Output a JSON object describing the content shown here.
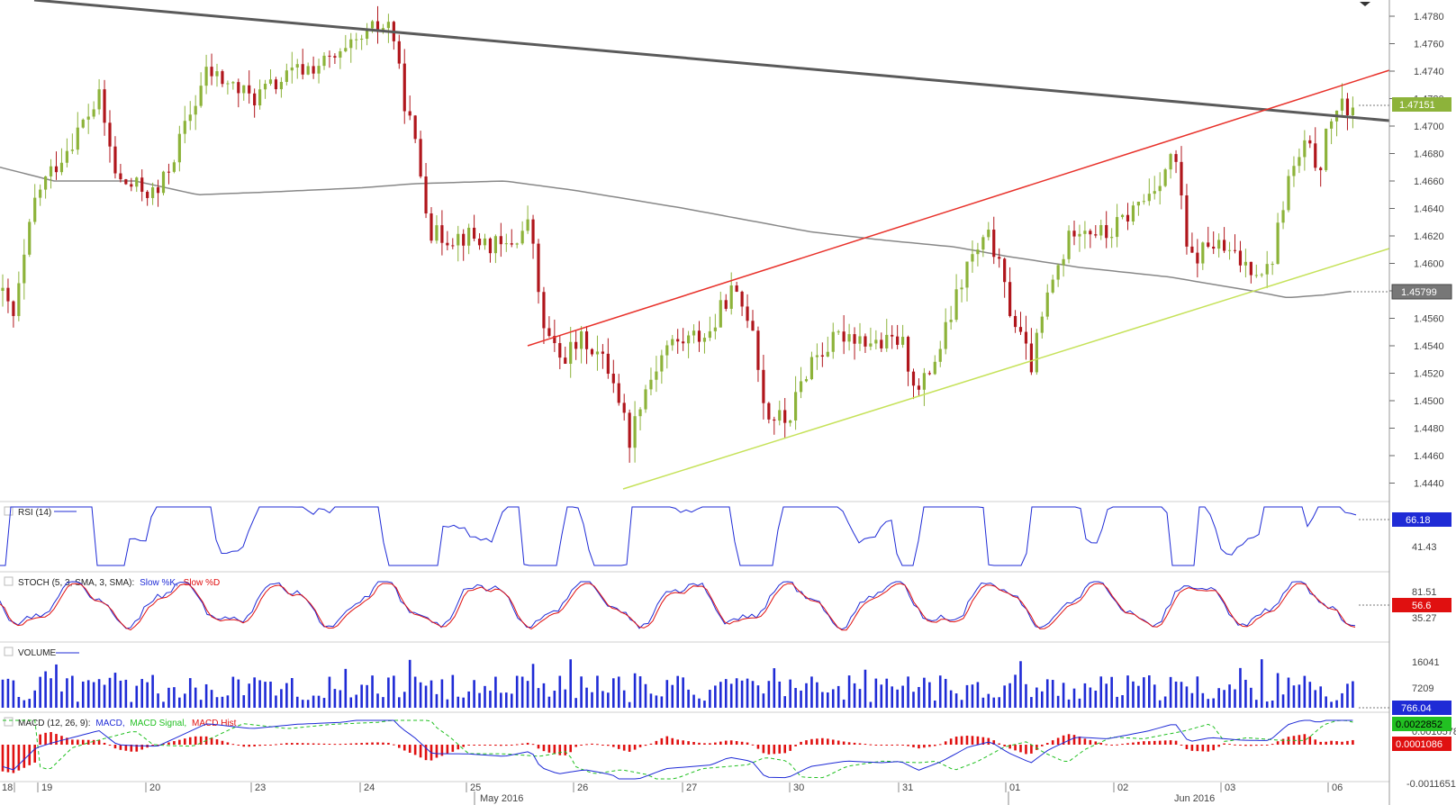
{
  "chart_data": {
    "type": "candlestick",
    "price_axis": {
      "ticks": [
        "1.4780",
        "1.4760",
        "1.4740",
        "1.4720",
        "1.4700",
        "1.4680",
        "1.4660",
        "1.4640",
        "1.4620",
        "1.4600",
        "1.4580",
        "1.4560",
        "1.4540",
        "1.4520",
        "1.4500",
        "1.4480",
        "1.4460",
        "1.4440"
      ],
      "range": [
        1.443,
        1.479
      ],
      "last_price": "1.47151",
      "ma_value": "1.45799",
      "last_color": "#8db33a",
      "ma_tag_color": "#777777"
    },
    "date_axis": {
      "days": [
        "18",
        "19",
        "20",
        "23",
        "24",
        "25",
        "26",
        "27",
        "30",
        "31",
        "01",
        "02",
        "03",
        "06"
      ],
      "months": [
        "May 2016",
        "Jun 2016"
      ]
    },
    "ohlc_summary": {
      "start_close": 1.458,
      "lows": [
        {
          "day": "26",
          "value": 1.444
        },
        {
          "day": "27",
          "value": 1.4478
        },
        {
          "day": "31",
          "value": 1.4502
        },
        {
          "day": "01",
          "value": 1.452
        }
      ],
      "highs": [
        {
          "day": "24",
          "value": 1.4782
        },
        {
          "day": "02",
          "value": 1.4708
        },
        {
          "day": "06",
          "value": 1.4724
        }
      ],
      "last": 1.47151
    },
    "panels": {
      "rsi": {
        "label": "RSI (14)",
        "levels": [
          "41.43"
        ],
        "value": "66.18",
        "value_color": "#1f2bd6"
      },
      "stoch": {
        "label": "STOCH (5, 3, SMA, 3, SMA):",
        "k_label": "Slow %K,",
        "d_label": "Slow %D",
        "levels": [
          "81.51",
          "35.27"
        ],
        "value": "56.6",
        "value_color": "#e01010"
      },
      "volume": {
        "label": "VOLUME",
        "levels": [
          "16041",
          "7209"
        ],
        "value": "766.04",
        "value_color": "#1f2bd6"
      },
      "macd": {
        "label": "MACD (12, 26, 9):",
        "macd_label": "MACD,",
        "signal_label": "MACD Signal,",
        "hist_label": "MACD Hist",
        "levels": [
          "0.0010578",
          "-0.0011651"
        ],
        "value_macd": "0.0022852",
        "value_hist": "0.0001086",
        "macd_color": "#1f2bd6",
        "signal_color": "#22c022",
        "hist_color": "#e01010"
      }
    },
    "colors": {
      "bull": "#8db33a",
      "bear": "#b0161c",
      "trend_dark": "#555555",
      "channel_top": "#e8312a",
      "channel_bottom": "#c6e25a",
      "ma": "#888888"
    },
    "grid": false
  }
}
